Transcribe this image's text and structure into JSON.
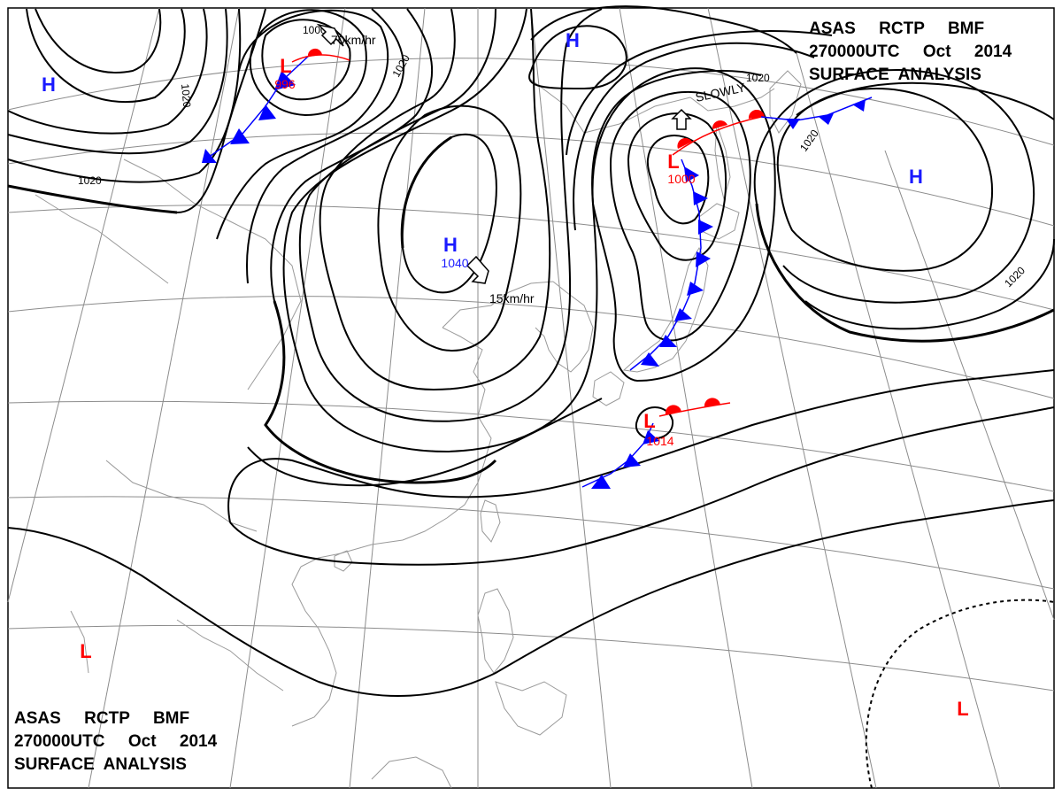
{
  "titles": {
    "top_right": [
      "ASAS     RCTP     BMF",
      "270000UTC     Oct     2014",
      "SURFACE  ANALYSIS"
    ],
    "bottom_left": [
      "ASAS     RCTP     BMF",
      "270000UTC     Oct     2014",
      "SURFACE  ANALYSIS"
    ]
  },
  "centers": [
    {
      "letter": "H",
      "value": "",
      "color": "#1a1aff"
    },
    {
      "letter": "L",
      "value": "996",
      "color": "#ff0000"
    },
    {
      "letter": "H",
      "value": "",
      "color": "#1a1aff"
    },
    {
      "letter": "H",
      "value": "1040",
      "color": "#1a1aff"
    },
    {
      "letter": "L",
      "value": "1000",
      "color": "#ff0000"
    },
    {
      "letter": "H",
      "value": "",
      "color": "#1a1aff"
    },
    {
      "letter": "L",
      "value": "1014",
      "color": "#ff0000"
    },
    {
      "letter": "L",
      "value": "",
      "color": "#ff0000"
    },
    {
      "letter": "L",
      "value": "",
      "color": "#ff0000"
    }
  ],
  "isobar_labels": [
    "1020",
    "1020",
    "1000",
    "1020",
    "1020",
    "1020",
    "1020"
  ],
  "motions": [
    {
      "text": "70km/hr"
    },
    {
      "text": "15km/hr"
    },
    {
      "text": "SLOWLY"
    }
  ],
  "colors": {
    "cold_front": "#0000ff",
    "warm_front": "#ff0000",
    "isobar": "#000000",
    "coast": "#9a9a9a",
    "grid": "#8c8c8c"
  }
}
